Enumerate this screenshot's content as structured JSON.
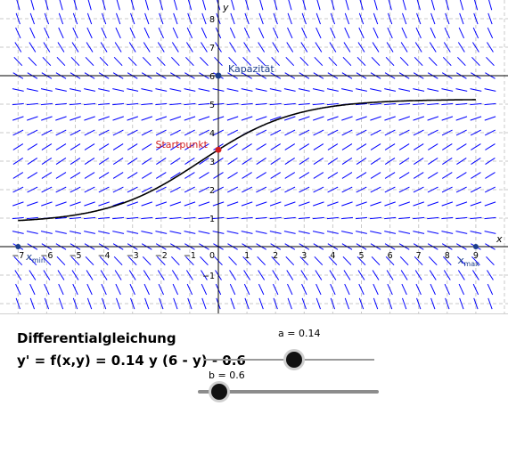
{
  "graph": {
    "x_axis_label": "x",
    "y_axis_label": "y",
    "x_ticks": [
      "−7",
      "−6",
      "−5",
      "−4",
      "−3",
      "−2",
      "−1",
      "0",
      "1",
      "2",
      "3",
      "4",
      "5",
      "6",
      "7",
      "8",
      "9"
    ],
    "y_ticks": [
      "−1",
      "1",
      "2",
      "3",
      "4",
      "5",
      "6",
      "7",
      "8"
    ],
    "xlim": [
      -7.2,
      10.2
    ],
    "ylim": [
      -2.0,
      8.0
    ],
    "capacity_label": "Kapazität",
    "capacity_value": 6,
    "start_label": "Startpunkt",
    "start_point": [
      0,
      3.4
    ],
    "xmin_label": "x",
    "xmin_sub": "min",
    "xmin_value": -7,
    "xmax_label": "x",
    "xmax_sub": "max",
    "xmax_value": 9,
    "colors": {
      "field": "#0000ff",
      "point_blue": "#1c3d8c",
      "point_red": "#d21f1f",
      "grid": "#c8c8c8",
      "curve": "#000000"
    }
  },
  "panel": {
    "title": "Differentialgleichung",
    "formula": "y' = f(x,y) = 0.14 y (6 - y) - 0.6"
  },
  "sliders": [
    {
      "name": "a",
      "label": "a = 0.14",
      "value": 0.14,
      "fraction": 0.53
    },
    {
      "name": "b",
      "label": "b = 0.6",
      "value": 0.6,
      "fraction": 0.12
    }
  ]
}
